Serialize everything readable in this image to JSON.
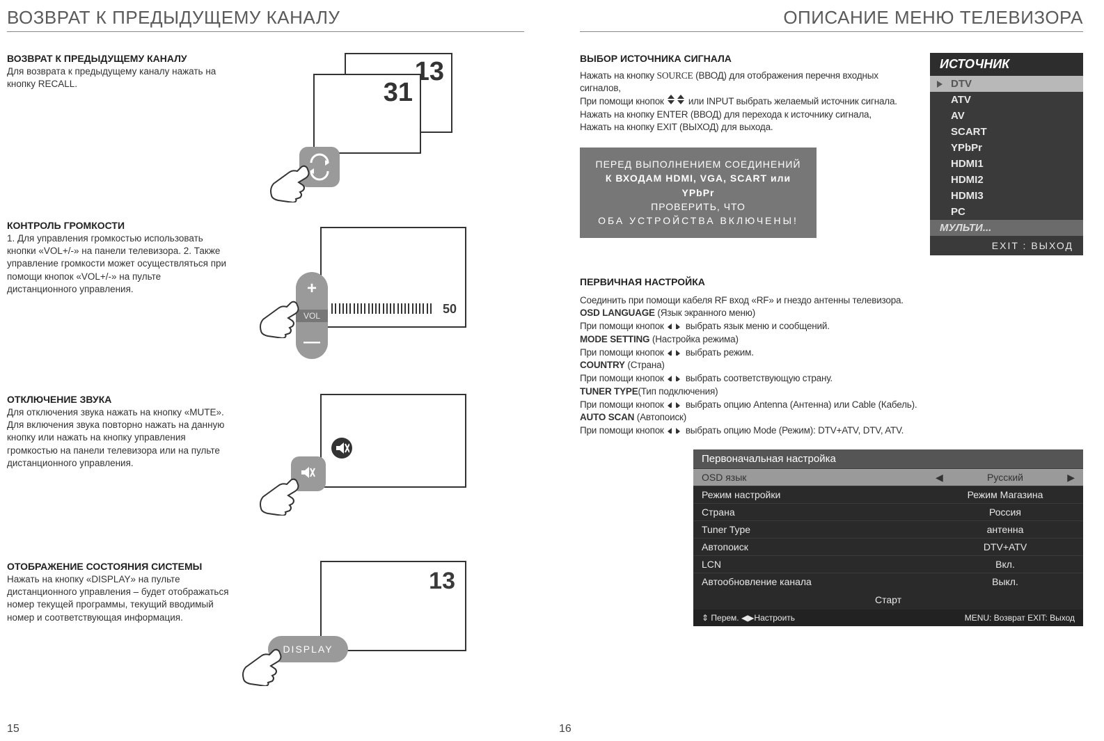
{
  "left": {
    "top_title": "ВОЗВРАТ К ПРЕДЫДУЩЕМУ КАНАЛУ",
    "page_num": "15",
    "recall": {
      "title": "ВОЗВРАТ К ПРЕДЫДУЩЕМУ КАНАЛУ",
      "body": "Для возврата к предыдущему каналу нажать на кнопку RECALL.",
      "back_num": "13",
      "front_num": "31"
    },
    "volume": {
      "title": "КОНТРОЛЬ ГРОМКОСТИ",
      "body": "1. Для управления громкостью использовать кнопки «VOL+/-» на панели телевизора.\n2. Также управление громкости может осуществляться при помощи кнопок «VOL+/-» на пульте дистанционного управления.",
      "value": "50",
      "btn_label": "VOL"
    },
    "mute": {
      "title": "ОТКЛЮЧЕНИЕ ЗВУКА",
      "body": "Для отключения звука нажать на кнопку «MUTE». Для включения звука повторно нажать на данную кнопку или нажать на кнопку управления громкостью на панели телевизора или на пульте дистанционного управления."
    },
    "display": {
      "title": "ОТОБРАЖЕНИЕ СОСТОЯНИЯ СИСТЕМЫ",
      "body": "Нажать на кнопку «DISPLAY» на пульте дистанционного управления – будет отображаться номер текущей программы, текущий вводимый номер и соответствующая информация.",
      "num": "13",
      "btn_label": "DISPLAY"
    }
  },
  "right": {
    "top_title": "ОПИСАНИЕ МЕНЮ ТЕЛЕВИЗОРА",
    "page_num": "16",
    "source_sel": {
      "title": "ВЫБОР ИСТОЧНИКА СИГНАЛА",
      "line1a": "Нажать на кнопку ",
      "line1b": "SOURCE",
      "line1c": " (ВВОД) для отображения перечня входных сигналов,",
      "line2a": "При помощи кнопок ",
      "line2b": " или INPUT выбрать желаемый источник сигнала.",
      "line3": "Нажать на кнопку ENTER (ВВОД) для перехода к источнику сигнала,",
      "line4": "Нажать на кнопку EXIT (ВЫХОД) для выхода."
    },
    "warn": {
      "l1": "ПЕРЕД ВЫПОЛНЕНИЕМ СОЕДИНЕНИЙ",
      "l2": "К ВХОДАМ HDMI, VGA, SCART или YPbPr",
      "l3": "ПРОВЕРИТЬ, ЧТО",
      "l4": "ОБА УСТРОЙСТВА ВКЛЮЧЕНЫ!"
    },
    "src_menu": {
      "header": "ИСТОЧНИК",
      "items": [
        "DTV",
        "ATV",
        "AV",
        "SCART",
        "YPbPr",
        "HDMI1",
        "HDMI2",
        "HDMI3",
        "PC"
      ],
      "multi": "МУЛЬТИ...",
      "exit": "EXIT : ВЫХОД"
    },
    "initial": {
      "title": "ПЕРВИЧНАЯ НАСТРОЙКА",
      "intro": "Соединить при помощи кабеля RF вход «RF» и гнездо антенны телевизора.",
      "osd_lang_b": "OSD LANGUAGE",
      "osd_lang_t": " (Язык экранного меню)",
      "help_prefix": "При помощи кнопок ",
      "osd_lang_help": " выбрать язык меню и сообщений.",
      "mode_b": "MODE SETTING",
      "mode_t": " (Настройка режима)",
      "mode_help": " выбрать режим.",
      "country_b": "COUNTRY",
      "country_t": " (Страна)",
      "country_help": " выбрать соответствующую страну.",
      "tuner_b": "TUNER TYPE",
      "tuner_t": "(Тип подключения)",
      "tuner_help": " выбрать опцию Antenna (Антенна) или Cable (Кабель).",
      "auto_b": "AUTO SCAN",
      "auto_t": " (Автопоиск)",
      "auto_help": " выбрать опцию Mode (Режим): DTV+ATV, DTV, ATV."
    },
    "setup_menu": {
      "header": "Первоначальная настройка",
      "rows": [
        {
          "lbl": "OSD язык",
          "val": "Русский",
          "osd": true
        },
        {
          "lbl": "Режим настройки",
          "val": "Режим Магазина"
        },
        {
          "lbl": "Страна",
          "val": "Россия"
        },
        {
          "lbl": "Tuner Type",
          "val": "антенна"
        },
        {
          "lbl": "Автопоиск",
          "val": "DTV+ATV"
        },
        {
          "lbl": "LCN",
          "val": "Вкл."
        },
        {
          "lbl": "Автообновление канала",
          "val": "Выкл."
        }
      ],
      "start": "Старт",
      "footer_left": "⇕  Перем.   ◀▶Настроить",
      "footer_right": "MENU: Возврат  EXIT: Выход"
    }
  },
  "colors": {
    "gray_btn": "#9a9a9a",
    "dark": "#333333",
    "menu_bg": "#3a3a3a",
    "menu_sel": "#b8b8b8"
  }
}
